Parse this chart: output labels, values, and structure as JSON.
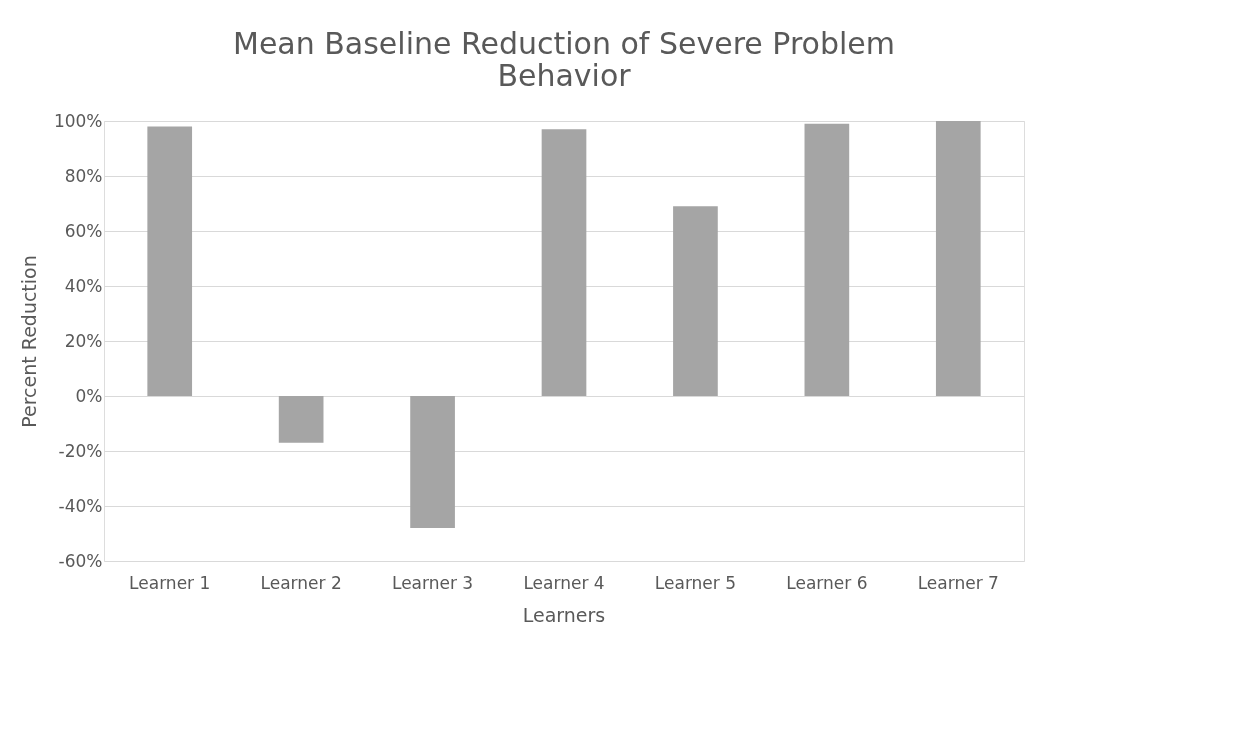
{
  "chart_data": {
    "type": "bar",
    "title": [
      "Mean Baseline Reduction of Severe Problem",
      "Behavior"
    ],
    "xlabel": "Learners",
    "ylabel": "Percent Reduction",
    "categories": [
      "Learner 1",
      "Learner 2",
      "Learner 3",
      "Learner 4",
      "Learner 5",
      "Learner 6",
      "Learner 7"
    ],
    "values": [
      98,
      -17,
      -48,
      97,
      69,
      99,
      100
    ],
    "color": "#a5a5a5",
    "ylim": [
      -60,
      100
    ],
    "yticks": [
      {
        "value": -60,
        "label": "-60%"
      },
      {
        "value": -40,
        "label": "-40%"
      },
      {
        "value": -20,
        "label": "-20%"
      },
      {
        "value": 0,
        "label": "0%"
      },
      {
        "value": 20,
        "label": "20%"
      },
      {
        "value": 40,
        "label": "40%"
      },
      {
        "value": 60,
        "label": "60%"
      },
      {
        "value": 80,
        "label": "80%"
      },
      {
        "value": 100,
        "label": "100%"
      }
    ],
    "grid": "y"
  }
}
